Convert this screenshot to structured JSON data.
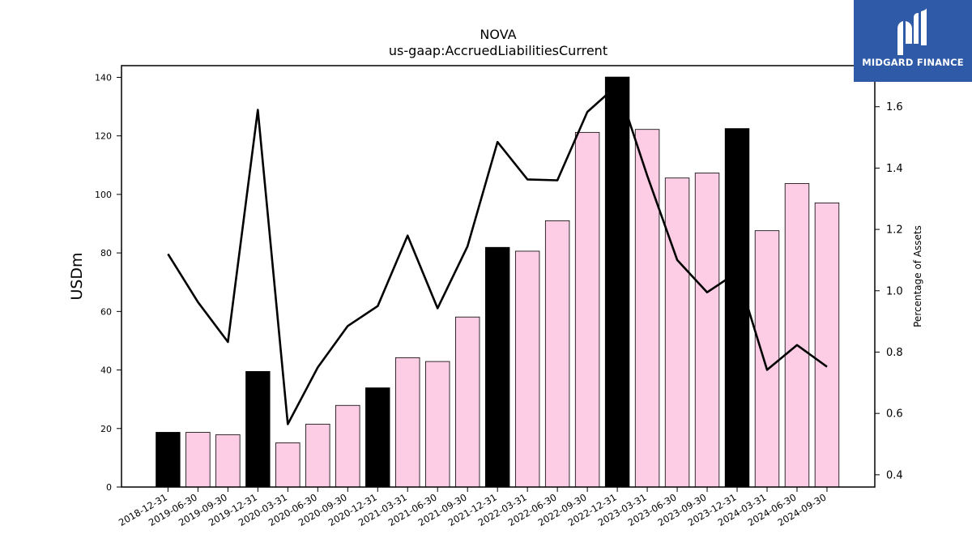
{
  "chart_data": {
    "type": "bar",
    "title": "NOVA",
    "subtitle": "us-gaap:AccruedLiabilitiesCurrent",
    "ylabel": "USDm",
    "y2label": "Percentage of Assets",
    "ylim": [
      0,
      144
    ],
    "y2lim": [
      0.36,
      1.734
    ],
    "yticks": [
      0,
      20,
      40,
      60,
      80,
      100,
      120,
      140
    ],
    "y2ticks": [
      0.4,
      0.6,
      0.8,
      1.0,
      1.2,
      1.4,
      1.6
    ],
    "categories": [
      "2018-12-31",
      "2019-06-30",
      "2019-09-30",
      "2019-12-31",
      "2020-03-31",
      "2020-06-30",
      "2020-09-30",
      "2020-12-31",
      "2021-03-31",
      "2021-06-30",
      "2021-09-30",
      "2021-12-31",
      "2022-03-31",
      "2022-06-30",
      "2022-09-30",
      "2022-12-31",
      "2023-03-31",
      "2023-06-30",
      "2023-09-30",
      "2023-12-31",
      "2024-03-31",
      "2024-06-30",
      "2024-09-30"
    ],
    "series": [
      {
        "values": [
          18.7,
          18.7,
          17.9,
          39.5,
          15.1,
          21.5,
          27.9,
          33.9,
          44.2,
          42.9,
          58.1,
          81.9,
          80.6,
          91.0,
          121.2,
          140.1,
          122.2,
          105.6,
          107.3,
          122.5,
          87.6,
          103.7,
          97.1
        ],
        "colors": [
          "#000000",
          "#fccde5",
          "#fccde5",
          "#000000",
          "#fccde5",
          "#fccde5",
          "#fccde5",
          "#000000",
          "#fccde5",
          "#fccde5",
          "#fccde5",
          "#000000",
          "#fccde5",
          "#fccde5",
          "#fccde5",
          "#000000",
          "#fccde5",
          "#fccde5",
          "#fccde5",
          "#000000",
          "#fccde5",
          "#fccde5",
          "#fccde5"
        ]
      },
      {
        "type": "line",
        "axis": "right",
        "color": "#000000",
        "values": [
          1.12,
          0.963,
          0.833,
          1.59,
          0.565,
          0.75,
          0.885,
          0.95,
          1.18,
          0.943,
          1.145,
          1.485,
          1.363,
          1.36,
          1.583,
          1.67,
          1.375,
          1.1,
          0.995,
          1.06,
          0.742,
          0.823,
          0.752
        ]
      }
    ]
  },
  "logo": {
    "text": "MIDGARD FINANCE",
    "bg": "#2f5aa8"
  }
}
